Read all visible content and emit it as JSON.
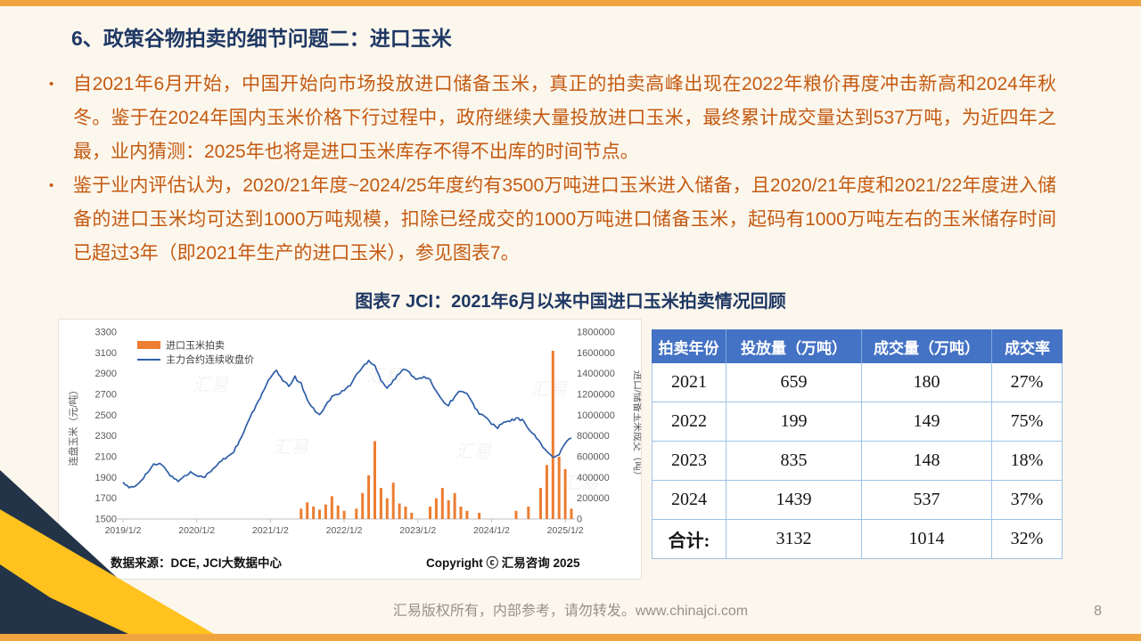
{
  "page": {
    "title": "6、政策谷物拍卖的细节问题二：进口玉米",
    "footer": "汇易版权所有，内部参考，请勿转发。www.chinajci.com",
    "page_number": "8"
  },
  "bullets": [
    {
      "marker": "•",
      "text": "自2021年6月开始，中国开始向市场投放进口储备玉米，真正的拍卖高峰出现在2022年粮价再度冲击新高和2024年秋冬。鉴于在2024年国内玉米价格下行过程中，政府继续大量投放进口玉米，最终累计成交量达到537万吨，为近四年之最，业内猜测：2025年也将是进口玉米库存不得不出库的时间节点。"
    },
    {
      "marker": "•",
      "text": "鉴于业内评估认为，2020/21年度~2024/25年度约有3500万吨进口玉米进入储备，且2020/21年度和2021/22年度进入储备的进口玉米均可达到1000万吨规模，扣除已经成交的1000万吨进口储备玉米，起码有1000万吨左右的玉米储存时间已超过3年（即2021年生产的进口玉米），参见图表7。"
    }
  ],
  "figure": {
    "title": "图表7  JCI：2021年6月以来中国进口玉米拍卖情况回顾",
    "source": "数据来源：DCE, JCI大数据中心",
    "copyright": "Copyright ⓒ 汇易咨询 2025",
    "watermark": "汇易"
  },
  "chart_data": {
    "type": "line+bar",
    "x_start": "2019-01",
    "x_interval": "month",
    "x_tick_index": [
      0,
      12,
      24,
      36,
      48,
      60,
      72
    ],
    "x_tick_labels": [
      "2019/1/2",
      "2020/1/2",
      "2021/1/2",
      "2022/1/2",
      "2023/1/2",
      "2024/1/2",
      "2025/1/2"
    ],
    "left_axis": {
      "title": "连盘玉米（元/吨）",
      "min": 1500,
      "max": 3300,
      "ticks": [
        1500,
        1700,
        1900,
        2100,
        2300,
        2500,
        2700,
        2900,
        3100,
        3300
      ]
    },
    "right_axis": {
      "title": "进口/储备玉米成交（吨）",
      "min": 0,
      "max": 1800000,
      "ticks": [
        0,
        200000,
        400000,
        600000,
        800000,
        1000000,
        1200000,
        1400000,
        1600000,
        1800000
      ]
    },
    "legend": [
      {
        "label": "进口玉米拍卖",
        "type": "bar",
        "color": "#ED7D31"
      },
      {
        "label": "主力合约连续收盘价",
        "type": "line",
        "color": "#2E5EA8"
      }
    ],
    "line_series": {
      "name": "主力合约连续收盘价",
      "unit": "元/吨",
      "values": [
        1855,
        1795,
        1815,
        1880,
        1950,
        2020,
        2030,
        1980,
        1900,
        1870,
        1910,
        1950,
        1930,
        1900,
        1940,
        2000,
        2060,
        2100,
        2150,
        2250,
        2380,
        2520,
        2620,
        2760,
        2870,
        2925,
        2830,
        2780,
        2865,
        2800,
        2650,
        2560,
        2510,
        2590,
        2680,
        2700,
        2740,
        2790,
        2890,
        2960,
        3030,
        2980,
        2840,
        2760,
        2830,
        2900,
        2950,
        2890,
        2840,
        2870,
        2830,
        2740,
        2640,
        2600,
        2680,
        2740,
        2700,
        2600,
        2520,
        2480,
        2420,
        2380,
        2430,
        2440,
        2470,
        2450,
        2380,
        2300,
        2230,
        2150,
        2090,
        2120,
        2230,
        2280
      ]
    },
    "bar_series": {
      "name": "进口玉米拍卖",
      "unit": "吨",
      "points": [
        [
          29,
          100000
        ],
        [
          30,
          160000
        ],
        [
          31,
          120000
        ],
        [
          32,
          90000
        ],
        [
          33,
          140000
        ],
        [
          34,
          220000
        ],
        [
          35,
          130000
        ],
        [
          36,
          80000
        ],
        [
          38,
          100000
        ],
        [
          39,
          250000
        ],
        [
          40,
          420000
        ],
        [
          41,
          750000
        ],
        [
          42,
          300000
        ],
        [
          43,
          200000
        ],
        [
          44,
          350000
        ],
        [
          45,
          150000
        ],
        [
          46,
          120000
        ],
        [
          47,
          60000
        ],
        [
          50,
          120000
        ],
        [
          51,
          200000
        ],
        [
          52,
          300000
        ],
        [
          53,
          180000
        ],
        [
          54,
          250000
        ],
        [
          55,
          120000
        ],
        [
          56,
          80000
        ],
        [
          58,
          60000
        ],
        [
          64,
          80000
        ],
        [
          66,
          120000
        ],
        [
          68,
          300000
        ],
        [
          69,
          520000
        ],
        [
          70,
          1620000
        ],
        [
          71,
          600000
        ],
        [
          72,
          480000
        ],
        [
          73,
          100000
        ]
      ]
    }
  },
  "table": {
    "headers": [
      "拍卖年份",
      "投放量（万吨）",
      "成交量（万吨）",
      "成交率"
    ],
    "rows": [
      [
        "2021",
        "659",
        "180",
        "27%"
      ],
      [
        "2022",
        "199",
        "149",
        "75%"
      ],
      [
        "2023",
        "835",
        "148",
        "18%"
      ],
      [
        "2024",
        "1439",
        "537",
        "37%"
      ],
      [
        "合计:",
        "3132",
        "1014",
        "32%"
      ]
    ]
  },
  "colors": {
    "accent_bar": "#F0A43F",
    "title_navy": "#1F3864",
    "body_orange": "#C45A11",
    "bar_orange": "#ED7D31",
    "line_blue": "#2E5EA8",
    "table_header_blue": "#4472C4",
    "decor_navy": "#233449",
    "decor_gold": "#FFC21E"
  }
}
